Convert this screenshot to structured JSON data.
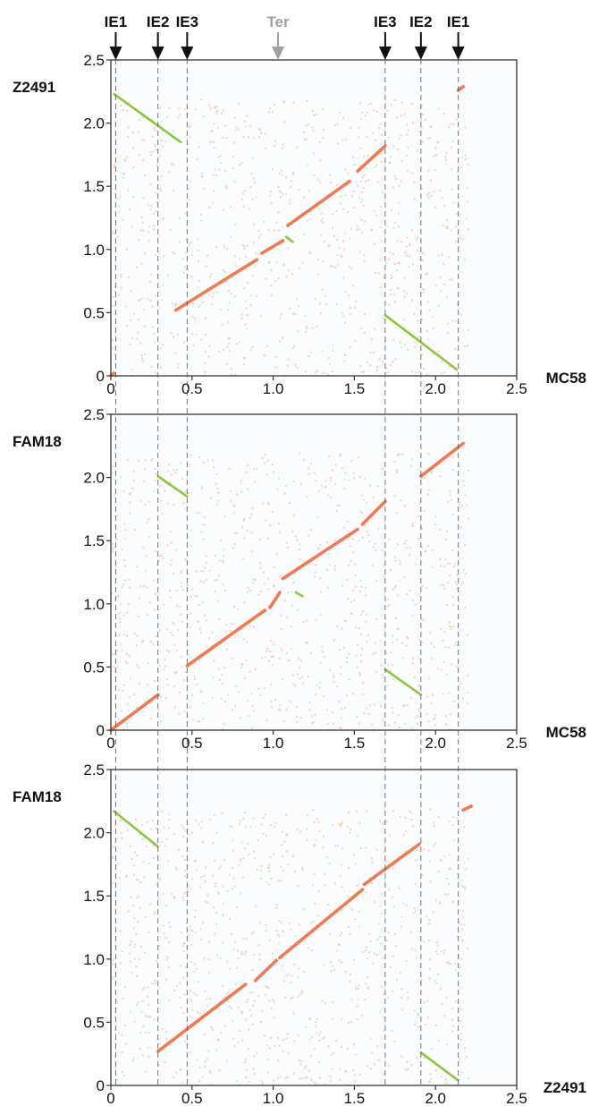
{
  "markers": [
    {
      "label": "IE1",
      "x": 0.03,
      "color": "#111111",
      "line": true
    },
    {
      "label": "IE2",
      "x": 0.29,
      "color": "#111111",
      "line": true
    },
    {
      "label": "IE3",
      "x": 0.47,
      "color": "#111111",
      "line": true
    },
    {
      "label": "Ter",
      "x": 1.03,
      "color": "#a0a0a0",
      "line": false
    },
    {
      "label": "IE3",
      "x": 1.69,
      "color": "#111111",
      "line": true
    },
    {
      "label": "IE2",
      "x": 1.91,
      "color": "#111111",
      "line": true
    },
    {
      "label": "IE1",
      "x": 2.14,
      "color": "#111111",
      "line": true
    }
  ],
  "colors": {
    "forward": "#f07a52",
    "reverse": "#8cc63f",
    "forward_noise": "#f7b3a0",
    "reverse_noise": "#a9d67a",
    "guide_line": "#555555",
    "plot_bg": "#fbfcfe"
  },
  "chart_data": [
    {
      "type": "scatter",
      "xlabel": "MC58",
      "ylabel": "Z2491",
      "xlim": [
        0,
        2.5
      ],
      "ylim": [
        0,
        2.5
      ],
      "xticks": [
        "0",
        "0.5",
        "1.0",
        "1.5",
        "2.0",
        "2.5"
      ],
      "yticks": [
        "0",
        "0.5",
        "1.0",
        "1.5",
        "2.0",
        "2.5"
      ],
      "series": [
        {
          "orientation": "reverse",
          "segments": [
            [
              [
                0.02,
                2.23
              ],
              [
                0.43,
                1.85
              ]
            ],
            [
              [
                1.69,
                0.48
              ],
              [
                2.13,
                0.05
              ]
            ],
            [
              [
                1.08,
                1.1
              ],
              [
                1.12,
                1.06
              ]
            ]
          ]
        },
        {
          "orientation": "forward",
          "segments": [
            [
              [
                0.4,
                0.52
              ],
              [
                0.9,
                0.92
              ]
            ],
            [
              [
                0.93,
                0.97
              ],
              [
                1.06,
                1.07
              ]
            ],
            [
              [
                1.09,
                1.19
              ],
              [
                1.47,
                1.54
              ]
            ],
            [
              [
                1.52,
                1.62
              ],
              [
                1.69,
                1.82
              ]
            ],
            [
              [
                2.14,
                2.26
              ],
              [
                2.17,
                2.29
              ]
            ],
            [
              [
                0.0,
                0.0
              ],
              [
                0.02,
                0.02
              ]
            ]
          ]
        }
      ]
    },
    {
      "type": "scatter",
      "xlabel": "MC58",
      "ylabel": "FAM18",
      "xlim": [
        0,
        2.5
      ],
      "ylim": [
        0,
        2.5
      ],
      "xticks": [
        "0",
        "0.5",
        "1.0",
        "1.5",
        "2.0",
        "2.5"
      ],
      "yticks": [
        "0",
        "0.5",
        "1.0",
        "1.5",
        "2.0",
        "2.5"
      ],
      "series": [
        {
          "orientation": "reverse",
          "segments": [
            [
              [
                0.29,
                2.01
              ],
              [
                0.47,
                1.85
              ]
            ],
            [
              [
                1.69,
                0.48
              ],
              [
                1.91,
                0.28
              ]
            ],
            [
              [
                1.14,
                1.09
              ],
              [
                1.18,
                1.06
              ]
            ]
          ]
        },
        {
          "orientation": "forward",
          "segments": [
            [
              [
                0.0,
                0.0
              ],
              [
                0.29,
                0.28
              ]
            ],
            [
              [
                0.47,
                0.51
              ],
              [
                0.95,
                0.95
              ]
            ],
            [
              [
                0.98,
                0.97
              ],
              [
                1.04,
                1.09
              ]
            ],
            [
              [
                1.06,
                1.2
              ],
              [
                1.52,
                1.59
              ]
            ],
            [
              [
                1.55,
                1.63
              ],
              [
                1.69,
                1.81
              ]
            ],
            [
              [
                1.91,
                2.01
              ],
              [
                2.17,
                2.27
              ]
            ]
          ]
        }
      ]
    },
    {
      "type": "scatter",
      "xlabel": "Z2491",
      "ylabel": "FAM18",
      "xlim": [
        0,
        2.5
      ],
      "ylim": [
        0,
        2.5
      ],
      "xticks": [
        "0",
        "0.5",
        "1.0",
        "1.5",
        "2.0",
        "2.5"
      ],
      "yticks": [
        "0",
        "0.5",
        "1.0",
        "1.5",
        "2.0",
        "2.5"
      ],
      "series": [
        {
          "orientation": "reverse",
          "segments": [
            [
              [
                0.02,
                2.17
              ],
              [
                0.29,
                1.89
              ]
            ],
            [
              [
                1.91,
                0.26
              ],
              [
                2.14,
                0.04
              ]
            ]
          ]
        },
        {
          "orientation": "forward",
          "segments": [
            [
              [
                0.29,
                0.27
              ],
              [
                0.83,
                0.8
              ]
            ],
            [
              [
                0.89,
                0.83
              ],
              [
                1.02,
                0.99
              ]
            ],
            [
              [
                1.04,
                1.01
              ],
              [
                1.55,
                1.55
              ]
            ],
            [
              [
                1.56,
                1.59
              ],
              [
                1.9,
                1.91
              ]
            ],
            [
              [
                2.17,
                2.18
              ],
              [
                2.22,
                2.21
              ]
            ]
          ]
        }
      ]
    }
  ]
}
